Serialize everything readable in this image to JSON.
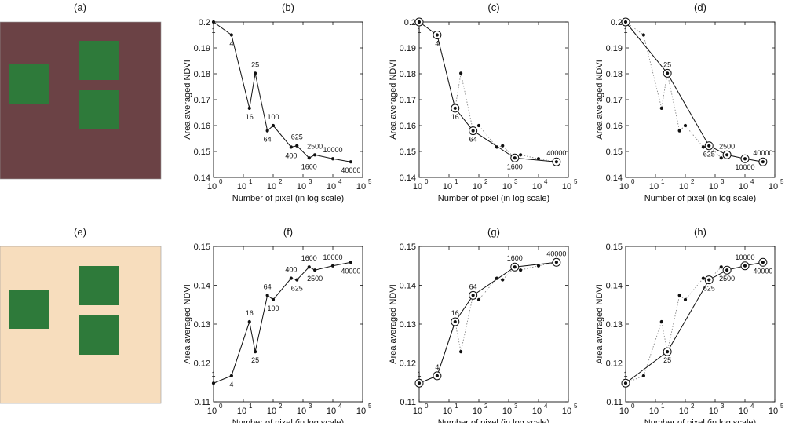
{
  "colors": {
    "map_a_background": "#6b4245",
    "map_e_background": "#f7ddbd",
    "vegetation": "#2e7a3a",
    "line": "#111111",
    "dotted": "#888888"
  },
  "maps": [
    {
      "label": "(a)",
      "background": "#6b4245"
    },
    {
      "label": "(e)",
      "background": "#f7ddbd"
    }
  ],
  "chart_data": [
    {
      "panel": "(b)",
      "type": "line",
      "xlabel": "Number of pixel (in log scale)",
      "ylabel": "Area averaged NDVI",
      "xscale": "log",
      "xlim": [
        1,
        100000
      ],
      "ylim": [
        0.14,
        0.2
      ],
      "yticks": [
        "0.14",
        "0.15",
        "0.16",
        "0.17",
        "0.18",
        "0.19",
        "0.2"
      ],
      "x": [
        1,
        4,
        16,
        25,
        64,
        100,
        400,
        625,
        1600,
        2500,
        10000,
        40000
      ],
      "values": [
        0.2,
        0.195,
        0.1667,
        0.1802,
        0.158,
        0.16,
        0.1517,
        0.1522,
        0.1475,
        0.1487,
        0.1472,
        0.146
      ],
      "highlight": [],
      "point_labels": [
        {
          "text": "1",
          "x": 1,
          "pos": "below"
        },
        {
          "text": "4",
          "x": 4,
          "pos": "below"
        },
        {
          "text": "16",
          "x": 16,
          "pos": "below"
        },
        {
          "text": "25",
          "x": 25,
          "pos": "above"
        },
        {
          "text": "64",
          "x": 64,
          "pos": "below"
        },
        {
          "text": "100",
          "x": 100,
          "pos": "above"
        },
        {
          "text": "400",
          "x": 400,
          "pos": "below"
        },
        {
          "text": "625",
          "x": 625,
          "pos": "above"
        },
        {
          "text": "1600",
          "x": 1600,
          "pos": "below"
        },
        {
          "text": "2500",
          "x": 2500,
          "pos": "above"
        },
        {
          "text": "10000",
          "x": 10000,
          "pos": "above"
        },
        {
          "text": "40000",
          "x": 40000,
          "pos": "below"
        }
      ]
    },
    {
      "panel": "(c)",
      "type": "line",
      "xlabel": "Number of pixel (in log scale)",
      "ylabel": "Area averaged NDVI",
      "xscale": "log",
      "xlim": [
        1,
        100000
      ],
      "ylim": [
        0.14,
        0.2
      ],
      "yticks": [
        "0.14",
        "0.15",
        "0.16",
        "0.17",
        "0.18",
        "0.19",
        "0.2"
      ],
      "x": [
        1,
        4,
        16,
        25,
        64,
        100,
        400,
        625,
        1600,
        2500,
        10000,
        40000
      ],
      "values": [
        0.2,
        0.195,
        0.1667,
        0.1802,
        0.158,
        0.16,
        0.1517,
        0.1522,
        0.1475,
        0.1487,
        0.1472,
        0.146
      ],
      "highlight": [
        1,
        4,
        16,
        64,
        1600,
        40000
      ],
      "point_labels": [
        {
          "text": "1",
          "x": 1,
          "pos": "below"
        },
        {
          "text": "4",
          "x": 4,
          "pos": "below"
        },
        {
          "text": "16",
          "x": 16,
          "pos": "below"
        },
        {
          "text": "64",
          "x": 64,
          "pos": "below"
        },
        {
          "text": "1600",
          "x": 1600,
          "pos": "below"
        },
        {
          "text": "40000",
          "x": 40000,
          "pos": "above"
        }
      ]
    },
    {
      "panel": "(d)",
      "type": "line",
      "xlabel": "Number of pixel (in log scale)",
      "ylabel": "Area averaged NDVI",
      "xscale": "log",
      "xlim": [
        1,
        100000
      ],
      "ylim": [
        0.14,
        0.2
      ],
      "yticks": [
        "0.14",
        "0.15",
        "0.16",
        "0.17",
        "0.18",
        "0.19",
        "0.2"
      ],
      "x": [
        1,
        4,
        16,
        25,
        64,
        100,
        400,
        625,
        1600,
        2500,
        10000,
        40000
      ],
      "values": [
        0.2,
        0.195,
        0.1667,
        0.1802,
        0.158,
        0.16,
        0.1517,
        0.1522,
        0.1475,
        0.1487,
        0.1472,
        0.146
      ],
      "highlight": [
        1,
        25,
        625,
        2500,
        10000,
        40000
      ],
      "point_labels": [
        {
          "text": "1",
          "x": 1,
          "pos": "below"
        },
        {
          "text": "25",
          "x": 25,
          "pos": "above"
        },
        {
          "text": "625",
          "x": 625,
          "pos": "below"
        },
        {
          "text": "2500",
          "x": 2500,
          "pos": "above"
        },
        {
          "text": "10000",
          "x": 10000,
          "pos": "below"
        },
        {
          "text": "40000",
          "x": 40000,
          "pos": "above"
        }
      ]
    },
    {
      "panel": "(f)",
      "type": "line",
      "xlabel": "Number of pixel (in log scale)",
      "ylabel": "Area averaged NDVI",
      "xscale": "log",
      "xlim": [
        1,
        100000
      ],
      "ylim": [
        0.11,
        0.15
      ],
      "yticks": [
        "0.11",
        "0.12",
        "0.13",
        "0.14",
        "0.15"
      ],
      "x": [
        1,
        4,
        16,
        25,
        64,
        100,
        400,
        625,
        1600,
        2500,
        10000,
        40000
      ],
      "values": [
        0.1148,
        0.1167,
        0.1306,
        0.1229,
        0.1374,
        0.1363,
        0.1418,
        0.1414,
        0.1447,
        0.1439,
        0.145,
        0.1459
      ],
      "highlight": [],
      "point_labels": [
        {
          "text": "1",
          "x": 1,
          "pos": "above"
        },
        {
          "text": "4",
          "x": 4,
          "pos": "below"
        },
        {
          "text": "16",
          "x": 16,
          "pos": "above"
        },
        {
          "text": "25",
          "x": 25,
          "pos": "below"
        },
        {
          "text": "64",
          "x": 64,
          "pos": "above"
        },
        {
          "text": "100",
          "x": 100,
          "pos": "below"
        },
        {
          "text": "400",
          "x": 400,
          "pos": "above"
        },
        {
          "text": "625",
          "x": 625,
          "pos": "below"
        },
        {
          "text": "1600",
          "x": 1600,
          "pos": "above"
        },
        {
          "text": "2500",
          "x": 2500,
          "pos": "below"
        },
        {
          "text": "10000",
          "x": 10000,
          "pos": "above"
        },
        {
          "text": "40000",
          "x": 40000,
          "pos": "below"
        }
      ]
    },
    {
      "panel": "(g)",
      "type": "line",
      "xlabel": "Number of pixel (in log scale)",
      "ylabel": "Area averaged NDVI",
      "xscale": "log",
      "xlim": [
        1,
        100000
      ],
      "ylim": [
        0.11,
        0.15
      ],
      "yticks": [
        "0.11",
        "0.12",
        "0.13",
        "0.14",
        "0.15"
      ],
      "x": [
        1,
        4,
        16,
        25,
        64,
        100,
        400,
        625,
        1600,
        2500,
        10000,
        40000
      ],
      "values": [
        0.1148,
        0.1167,
        0.1306,
        0.1229,
        0.1374,
        0.1363,
        0.1418,
        0.1414,
        0.1447,
        0.1439,
        0.145,
        0.1459
      ],
      "highlight": [
        1,
        4,
        16,
        64,
        1600,
        40000
      ],
      "point_labels": [
        {
          "text": "1",
          "x": 1,
          "pos": "above"
        },
        {
          "text": "4",
          "x": 4,
          "pos": "above"
        },
        {
          "text": "16",
          "x": 16,
          "pos": "above"
        },
        {
          "text": "64",
          "x": 64,
          "pos": "above"
        },
        {
          "text": "1600",
          "x": 1600,
          "pos": "above"
        },
        {
          "text": "40000",
          "x": 40000,
          "pos": "above"
        }
      ]
    },
    {
      "panel": "(h)",
      "type": "line",
      "xlabel": "Number of pixel (in log scale)",
      "ylabel": "Area averaged NDVI",
      "xscale": "log",
      "xlim": [
        1,
        100000
      ],
      "ylim": [
        0.11,
        0.15
      ],
      "yticks": [
        "0.11",
        "0.12",
        "0.13",
        "0.14",
        "0.15"
      ],
      "x": [
        1,
        4,
        16,
        25,
        64,
        100,
        400,
        625,
        1600,
        2500,
        10000,
        40000
      ],
      "values": [
        0.1148,
        0.1167,
        0.1306,
        0.1229,
        0.1374,
        0.1363,
        0.1418,
        0.1414,
        0.1447,
        0.1439,
        0.145,
        0.1459
      ],
      "highlight": [
        1,
        25,
        625,
        2500,
        10000,
        40000
      ],
      "point_labels": [
        {
          "text": "1",
          "x": 1,
          "pos": "above"
        },
        {
          "text": "25",
          "x": 25,
          "pos": "below"
        },
        {
          "text": "625",
          "x": 625,
          "pos": "below"
        },
        {
          "text": "2500",
          "x": 2500,
          "pos": "below"
        },
        {
          "text": "10000",
          "x": 10000,
          "pos": "above"
        },
        {
          "text": "40000",
          "x": 40000,
          "pos": "below"
        }
      ]
    }
  ]
}
